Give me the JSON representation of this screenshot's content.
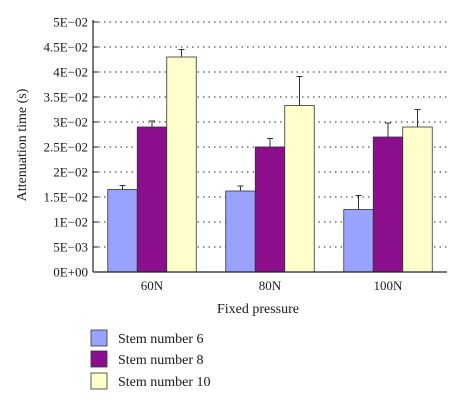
{
  "chart_data": {
    "type": "bar",
    "categories": [
      "60N",
      "80N",
      "100N"
    ],
    "series": [
      {
        "name": "Stem number 6",
        "values": [
          0.0165,
          0.0162,
          0.0125
        ],
        "errors": [
          0.0008,
          0.001,
          0.0028
        ],
        "color": "#9aa2ff"
      },
      {
        "name": "Stem number 8",
        "values": [
          0.029,
          0.025,
          0.027
        ],
        "errors": [
          0.0012,
          0.0017,
          0.0028
        ],
        "color": "#8b0f8c"
      },
      {
        "name": "Stem number 10",
        "values": [
          0.043,
          0.0333,
          0.029
        ],
        "errors": [
          0.0015,
          0.0058,
          0.0035
        ],
        "color": "#ffffcc"
      }
    ],
    "xlabel": "Fixed pressure",
    "ylabel": "Attenuation time (s)",
    "ylim": [
      0,
      0.05
    ],
    "yticks": [
      {
        "value": 0,
        "label": "0E+00"
      },
      {
        "value": 0.005,
        "label": "5E−03"
      },
      {
        "value": 0.01,
        "label": "1E−02"
      },
      {
        "value": 0.015,
        "label": "1.5E−02"
      },
      {
        "value": 0.02,
        "label": "2E−02"
      },
      {
        "value": 0.025,
        "label": "2.5E−02"
      },
      {
        "value": 0.03,
        "label": "3E−02"
      },
      {
        "value": 0.035,
        "label": "3.5E−02"
      },
      {
        "value": 0.04,
        "label": "4E−02"
      },
      {
        "value": 0.045,
        "label": "4.5E−02"
      },
      {
        "value": 0.05,
        "label": "5E−02"
      }
    ],
    "grid": "horizontal-dotted",
    "legend_position": "bottom"
  }
}
